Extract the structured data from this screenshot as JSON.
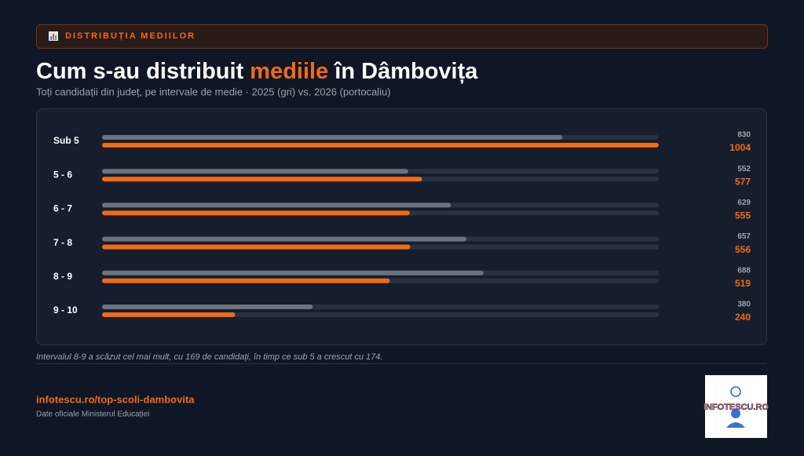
{
  "header": {
    "badge": "DISTRIBUȚIA MEDIILOR",
    "title": [
      "Cum s-au distribuit ",
      "mediile",
      " în Dâmbovița"
    ],
    "subtitle": "Toți candidații din județ, pe intervale de medie · 2025 (gri) vs. 2026 (portocaliu)"
  },
  "chart_data": {
    "type": "bar",
    "orientation": "horizontal",
    "categories": [
      "Sub 5",
      "5 - 6",
      "6 - 7",
      "7 - 8",
      "8 - 9",
      "9 - 10"
    ],
    "series": [
      {
        "color": "#6b7280",
        "values": [
          830,
          552,
          629,
          657,
          688,
          380
        ]
      },
      {
        "color": "#f26a12",
        "values": [
          1004,
          577,
          555,
          556,
          519,
          240
        ]
      }
    ]
  },
  "note": "Intervalul 8-9 a scăzut cel mai mult, cu 169 de candidați, în timp ce sub 5 a crescut cu 174.",
  "footer": {
    "link": "infotescu.ro/top-scoli-dambovita",
    "source": "Date oficiale Ministerul Educației"
  },
  "logo": "INFOTESCU.RO"
}
